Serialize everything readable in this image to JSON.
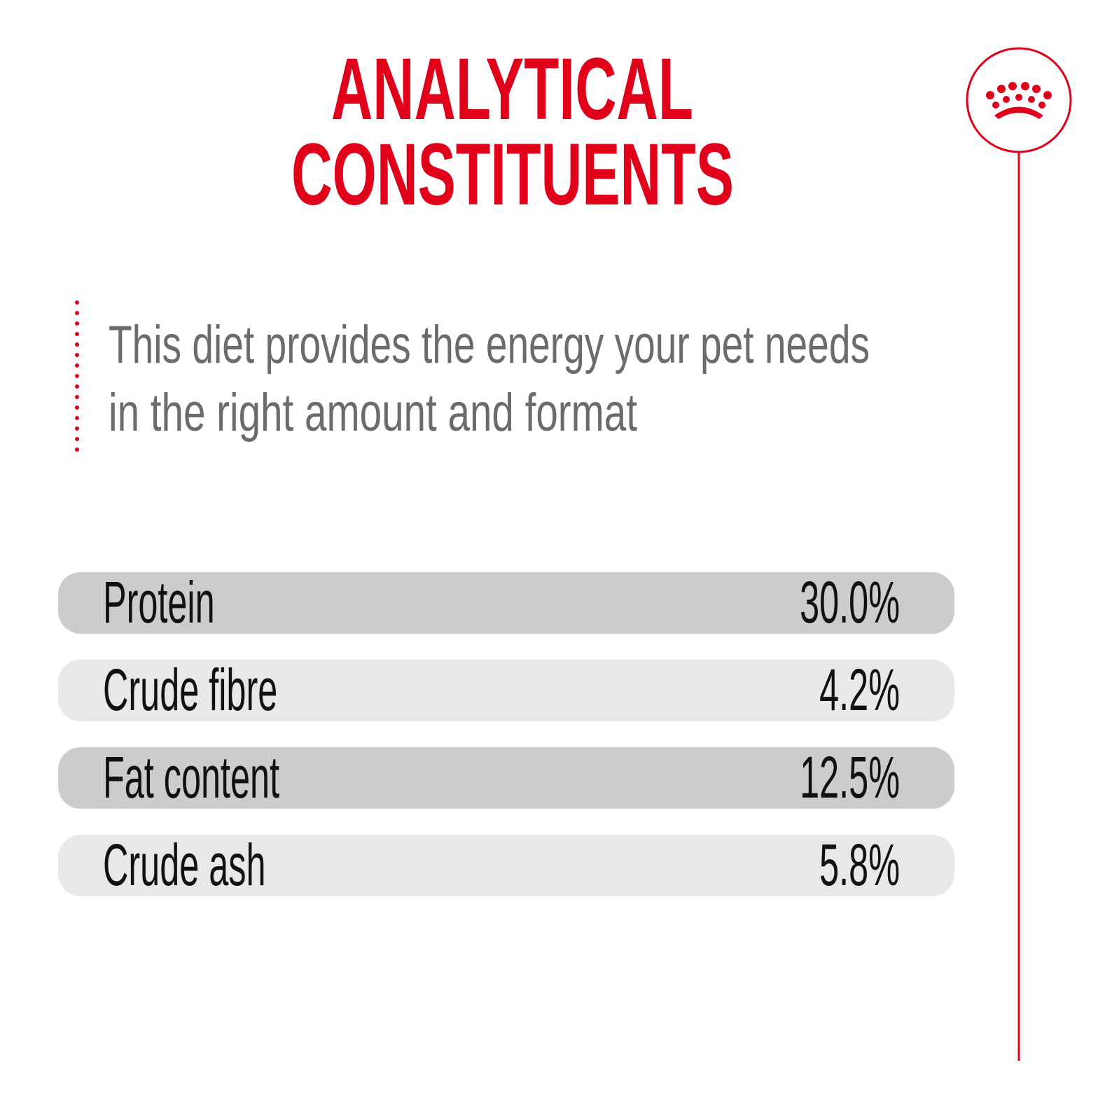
{
  "header": {
    "title": [
      "ANALYTICAL",
      "CONSTITUENTS"
    ]
  },
  "description": [
    "This diet provides the energy your pet needs",
    "in the right amount and format"
  ],
  "table": {
    "rows": [
      [
        "Protein",
        "30.0%"
      ],
      [
        "Crude fibre",
        "4.2%"
      ],
      [
        "Fat content",
        "12.5%"
      ],
      [
        "Crude ash",
        "5.8%"
      ]
    ]
  }
}
